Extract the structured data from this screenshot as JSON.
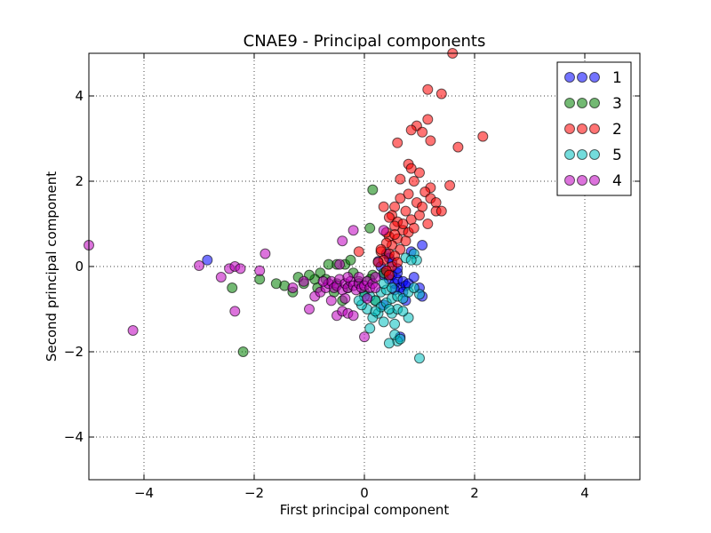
{
  "chart_data": {
    "type": "scatter",
    "title": "CNAE9 - Principal components",
    "xlabel": "First principal component",
    "ylabel": "Second principal component",
    "xlim": [
      -5,
      5
    ],
    "ylim": [
      -5,
      5
    ],
    "xticks": [
      -4,
      -2,
      0,
      2,
      4
    ],
    "yticks": [
      -4,
      -2,
      0,
      2,
      4
    ],
    "xtick_labels": [
      "−4",
      "−2",
      "0",
      "2",
      "4"
    ],
    "ytick_labels": [
      "−4",
      "−2",
      "0",
      "2",
      "4"
    ],
    "grid": true,
    "legend_position": "top-right",
    "series": [
      {
        "name": "1",
        "color": "#0000ff",
        "points": [
          [
            -2.85,
            0.15
          ],
          [
            0.25,
            0.12
          ],
          [
            0.3,
            0.0
          ],
          [
            0.35,
            -0.2
          ],
          [
            0.4,
            -0.1
          ],
          [
            0.45,
            -0.3
          ],
          [
            0.5,
            -0.2
          ],
          [
            0.55,
            -0.4
          ],
          [
            0.6,
            -0.3
          ],
          [
            0.65,
            -0.5
          ],
          [
            0.7,
            -0.35
          ],
          [
            0.75,
            -0.45
          ],
          [
            0.6,
            -0.15
          ],
          [
            0.55,
            -0.55
          ],
          [
            0.7,
            -0.6
          ],
          [
            0.8,
            -0.4
          ],
          [
            0.5,
            0.1
          ],
          [
            0.45,
            0.2
          ],
          [
            1.0,
            -0.5
          ],
          [
            1.05,
            -0.7
          ],
          [
            0.65,
            -1.65
          ],
          [
            1.05,
            0.5
          ],
          [
            0.85,
            0.35
          ],
          [
            0.35,
            -0.9
          ],
          [
            0.4,
            0.3
          ],
          [
            0.75,
            -0.8
          ],
          [
            0.9,
            -0.25
          ],
          [
            0.6,
            -0.05
          ]
        ]
      },
      {
        "name": "3",
        "color": "#008000",
        "points": [
          [
            0.15,
            1.8
          ],
          [
            0.1,
            0.9
          ],
          [
            -0.35,
            0.05
          ],
          [
            -0.5,
            0.05
          ],
          [
            -0.65,
            0.05
          ],
          [
            -0.8,
            -0.15
          ],
          [
            -0.9,
            -0.3
          ],
          [
            -1.1,
            -0.4
          ],
          [
            -1.3,
            -0.6
          ],
          [
            -1.45,
            -0.45
          ],
          [
            -1.6,
            -0.4
          ],
          [
            -1.2,
            -0.25
          ],
          [
            -1.0,
            -0.2
          ],
          [
            -0.7,
            -0.3
          ],
          [
            -0.5,
            -0.4
          ],
          [
            -0.3,
            -0.5
          ],
          [
            -0.1,
            -0.35
          ],
          [
            0.0,
            -0.6
          ],
          [
            0.15,
            -0.2
          ],
          [
            0.2,
            -0.8
          ],
          [
            -0.4,
            -0.8
          ],
          [
            -0.55,
            -0.6
          ],
          [
            -1.9,
            -0.3
          ],
          [
            -2.4,
            -0.5
          ],
          [
            -2.2,
            -2.0
          ],
          [
            0.35,
            -0.15
          ],
          [
            -0.2,
            -0.15
          ],
          [
            -0.85,
            -0.5
          ],
          [
            -0.25,
            0.15
          ],
          [
            0.1,
            -0.3
          ]
        ]
      },
      {
        "name": "2",
        "color": "#ff0000",
        "points": [
          [
            1.6,
            5.0
          ],
          [
            1.15,
            4.15
          ],
          [
            1.4,
            4.05
          ],
          [
            1.15,
            3.45
          ],
          [
            0.95,
            3.3
          ],
          [
            0.85,
            3.2
          ],
          [
            1.05,
            3.15
          ],
          [
            2.15,
            3.05
          ],
          [
            1.2,
            2.95
          ],
          [
            0.6,
            2.9
          ],
          [
            1.7,
            2.8
          ],
          [
            0.8,
            2.4
          ],
          [
            0.85,
            2.3
          ],
          [
            1.0,
            2.2
          ],
          [
            0.9,
            2.0
          ],
          [
            0.65,
            2.05
          ],
          [
            1.55,
            1.9
          ],
          [
            1.2,
            1.85
          ],
          [
            1.1,
            1.75
          ],
          [
            0.8,
            1.7
          ],
          [
            0.65,
            1.6
          ],
          [
            0.95,
            1.5
          ],
          [
            1.2,
            1.6
          ],
          [
            1.3,
            1.5
          ],
          [
            0.55,
            1.4
          ],
          [
            0.75,
            1.3
          ],
          [
            0.5,
            1.2
          ],
          [
            0.85,
            1.1
          ],
          [
            0.6,
            1.05
          ],
          [
            1.0,
            1.2
          ],
          [
            1.05,
            1.4
          ],
          [
            1.3,
            1.3
          ],
          [
            1.4,
            1.3
          ],
          [
            0.35,
            1.4
          ],
          [
            0.45,
            1.15
          ],
          [
            0.55,
            0.95
          ],
          [
            0.7,
            0.85
          ],
          [
            0.8,
            0.8
          ],
          [
            0.45,
            0.7
          ],
          [
            0.6,
            0.65
          ],
          [
            0.5,
            0.5
          ],
          [
            0.65,
            0.4
          ],
          [
            0.4,
            0.55
          ],
          [
            0.3,
            0.35
          ],
          [
            0.45,
            0.3
          ],
          [
            0.55,
            0.25
          ],
          [
            0.35,
            0.15
          ],
          [
            0.5,
            0.0
          ],
          [
            0.4,
            -0.1
          ],
          [
            0.6,
            0.1
          ],
          [
            0.3,
            0.4
          ],
          [
            -0.1,
            0.35
          ],
          [
            0.75,
            0.6
          ],
          [
            0.9,
            0.9
          ],
          [
            1.15,
            1.0
          ],
          [
            0.7,
            1.0
          ],
          [
            0.4,
            0.8
          ],
          [
            0.55,
            0.75
          ],
          [
            0.25,
            0.1
          ],
          [
            0.45,
            -0.2
          ]
        ]
      },
      {
        "name": "5",
        "color": "#00bfbf",
        "points": [
          [
            1.0,
            -2.15
          ],
          [
            0.6,
            -1.75
          ],
          [
            0.45,
            -1.8
          ],
          [
            0.55,
            -1.6
          ],
          [
            0.65,
            -1.7
          ],
          [
            0.1,
            -1.45
          ],
          [
            0.35,
            -1.3
          ],
          [
            0.8,
            -1.2
          ],
          [
            0.5,
            -1.1
          ],
          [
            0.6,
            -1.0
          ],
          [
            0.7,
            -1.05
          ],
          [
            0.25,
            -1.1
          ],
          [
            0.15,
            -1.2
          ],
          [
            0.05,
            -1.0
          ],
          [
            -0.05,
            -0.9
          ],
          [
            0.1,
            -0.7
          ],
          [
            0.2,
            -0.8
          ],
          [
            0.3,
            -0.95
          ],
          [
            0.4,
            -0.85
          ],
          [
            0.5,
            -0.75
          ],
          [
            0.6,
            -0.7
          ],
          [
            0.7,
            -0.75
          ],
          [
            0.8,
            -0.6
          ],
          [
            1.0,
            -0.65
          ],
          [
            0.9,
            -0.5
          ],
          [
            0.3,
            -0.6
          ],
          [
            0.4,
            -0.55
          ],
          [
            0.5,
            -0.5
          ],
          [
            0.75,
            0.2
          ],
          [
            0.9,
            0.3
          ],
          [
            0.95,
            0.15
          ],
          [
            0.85,
            0.15
          ],
          [
            0.35,
            -0.4
          ],
          [
            0.0,
            -0.7
          ],
          [
            -0.1,
            -0.8
          ],
          [
            0.45,
            -1.0
          ],
          [
            0.55,
            -1.35
          ],
          [
            0.2,
            -1.05
          ]
        ]
      },
      {
        "name": "4",
        "color": "#bf00bf",
        "points": [
          [
            -5.0,
            0.5
          ],
          [
            -4.2,
            -1.5
          ],
          [
            -3.0,
            0.02
          ],
          [
            -2.6,
            -0.25
          ],
          [
            -2.45,
            -0.05
          ],
          [
            -2.35,
            0.0
          ],
          [
            -2.25,
            -0.05
          ],
          [
            -2.35,
            -1.05
          ],
          [
            -1.9,
            -0.1
          ],
          [
            -1.8,
            0.3
          ],
          [
            -1.0,
            -1.0
          ],
          [
            -0.9,
            -0.7
          ],
          [
            -0.8,
            -0.6
          ],
          [
            -0.7,
            -0.5
          ],
          [
            -0.65,
            -0.4
          ],
          [
            -0.6,
            -0.35
          ],
          [
            -0.55,
            -0.5
          ],
          [
            -0.5,
            -0.45
          ],
          [
            -0.45,
            -0.3
          ],
          [
            -0.4,
            -0.55
          ],
          [
            -0.35,
            -0.4
          ],
          [
            -0.3,
            -0.5
          ],
          [
            -0.25,
            -0.35
          ],
          [
            -0.2,
            -0.45
          ],
          [
            -0.15,
            -0.55
          ],
          [
            -0.1,
            -0.4
          ],
          [
            -0.05,
            -0.5
          ],
          [
            0.0,
            -0.45
          ],
          [
            0.05,
            -0.35
          ],
          [
            0.1,
            -0.5
          ],
          [
            0.15,
            -0.4
          ],
          [
            0.2,
            -0.5
          ],
          [
            -0.5,
            -1.15
          ],
          [
            -0.4,
            -1.05
          ],
          [
            -0.3,
            -1.1
          ],
          [
            -0.2,
            -1.15
          ],
          [
            -0.6,
            -0.8
          ],
          [
            -0.3,
            -0.25
          ],
          [
            -0.1,
            -0.25
          ],
          [
            0.2,
            -0.25
          ],
          [
            -0.2,
            0.85
          ],
          [
            -0.4,
            0.6
          ],
          [
            0.35,
            0.85
          ],
          [
            0.0,
            -1.65
          ],
          [
            -1.1,
            -0.35
          ],
          [
            -1.3,
            -0.5
          ],
          [
            -0.75,
            -0.35
          ],
          [
            -0.35,
            -0.75
          ],
          [
            0.05,
            -0.75
          ],
          [
            -0.45,
            0.05
          ]
        ]
      }
    ]
  }
}
